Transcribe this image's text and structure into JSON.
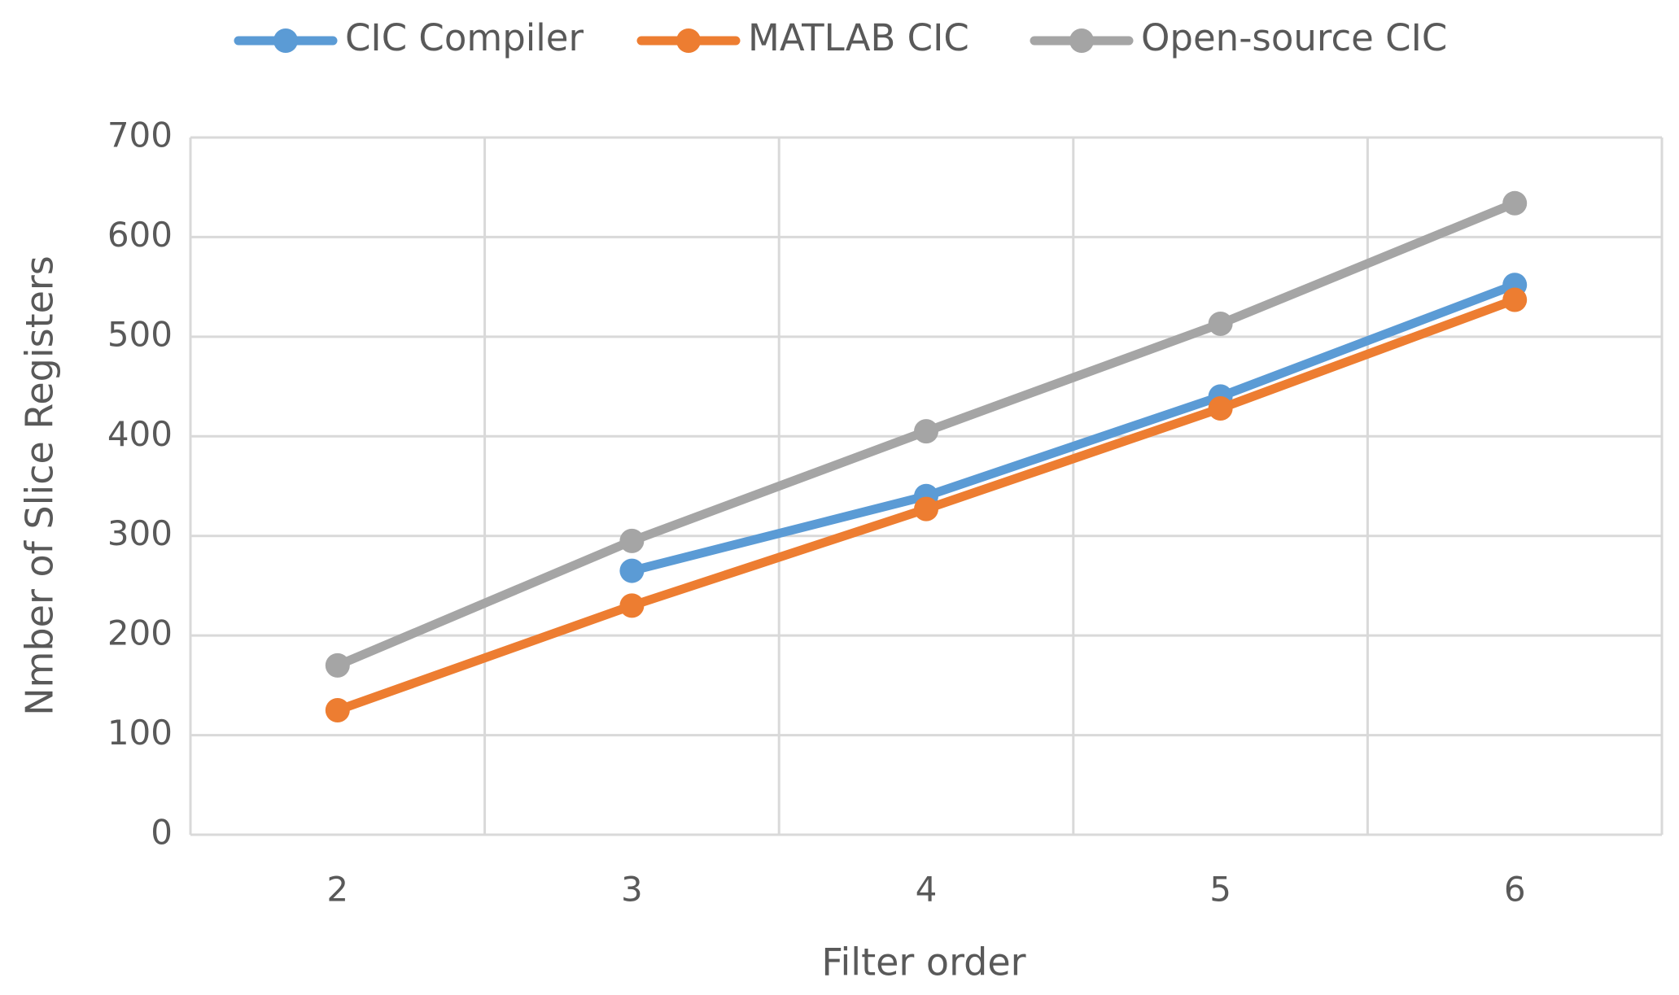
{
  "chart_data": {
    "type": "line",
    "x_label": "Filter order",
    "y_label": "Nmber of Slice Registers",
    "categories": [
      "2",
      "3",
      "4",
      "5",
      "6"
    ],
    "series": [
      {
        "name": "CIC Compiler",
        "color": "#5b9bd5",
        "values": [
          null,
          265,
          340,
          440,
          552
        ]
      },
      {
        "name": "MATLAB CIC",
        "color": "#ed7d31",
        "values": [
          125,
          230,
          327,
          428,
          537
        ]
      },
      {
        "name": "Open-source CIC",
        "color": "#a5a5a5",
        "values": [
          170,
          295,
          405,
          513,
          634
        ]
      }
    ],
    "ylim": [
      0,
      700
    ],
    "yticks": [
      0,
      100,
      200,
      300,
      400,
      500,
      600,
      700
    ],
    "grid": true,
    "legend": "top"
  }
}
